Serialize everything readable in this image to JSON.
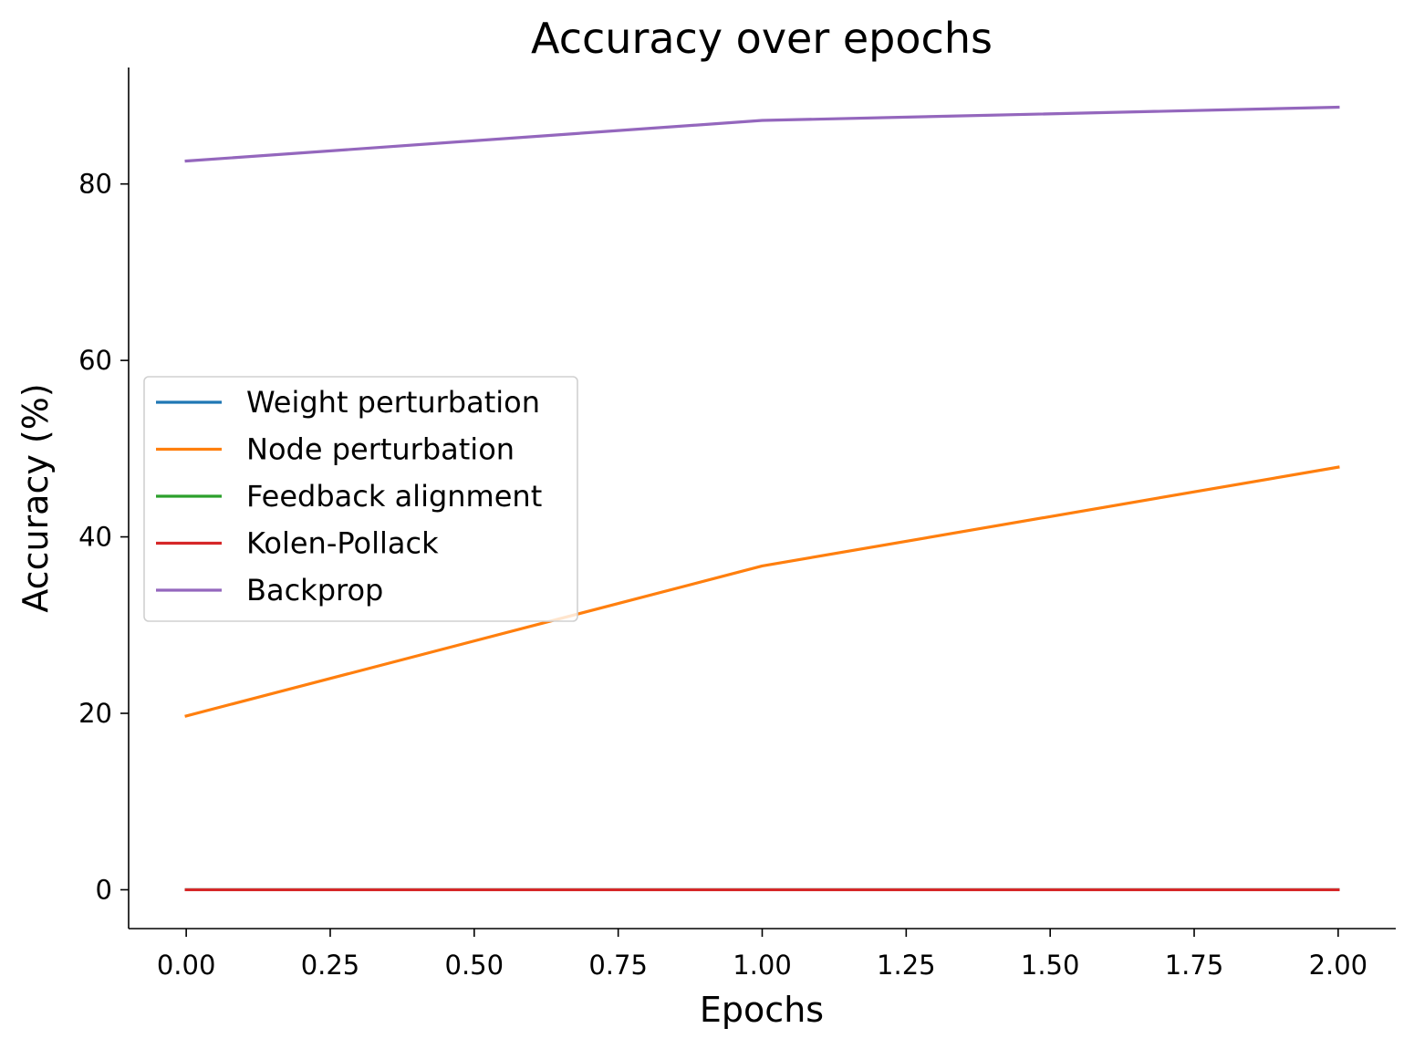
{
  "chart_data": {
    "type": "line",
    "title": "Accuracy over epochs",
    "xlabel": "Epochs",
    "ylabel": "Accuracy (%)",
    "x": [
      0,
      1,
      2
    ],
    "xlim": [
      -0.1,
      2.1
    ],
    "ylim": [
      -4.4,
      93.2
    ],
    "x_ticks": [
      0.0,
      0.25,
      0.5,
      0.75,
      1.0,
      1.25,
      1.5,
      1.75,
      2.0
    ],
    "x_tick_labels": [
      "0.00",
      "0.25",
      "0.50",
      "0.75",
      "1.00",
      "1.25",
      "1.50",
      "1.75",
      "2.00"
    ],
    "y_ticks": [
      0,
      20,
      40,
      60,
      80
    ],
    "y_tick_labels": [
      "0",
      "20",
      "40",
      "60",
      "80"
    ],
    "grid": false,
    "legend_position": "center-left",
    "series": [
      {
        "name": "Weight perturbation",
        "color": "#1f77b4",
        "values": [
          0,
          0,
          0
        ]
      },
      {
        "name": "Node perturbation",
        "color": "#ff7f0e",
        "values": [
          19.7,
          36.7,
          47.9
        ]
      },
      {
        "name": "Feedback alignment",
        "color": "#2ca02c",
        "values": [
          0,
          0,
          0
        ]
      },
      {
        "name": "Kolen-Pollack",
        "color": "#d62728",
        "values": [
          0,
          0,
          0
        ]
      },
      {
        "name": "Backprop",
        "color": "#9467bd",
        "values": [
          82.6,
          87.2,
          88.7
        ]
      }
    ]
  }
}
